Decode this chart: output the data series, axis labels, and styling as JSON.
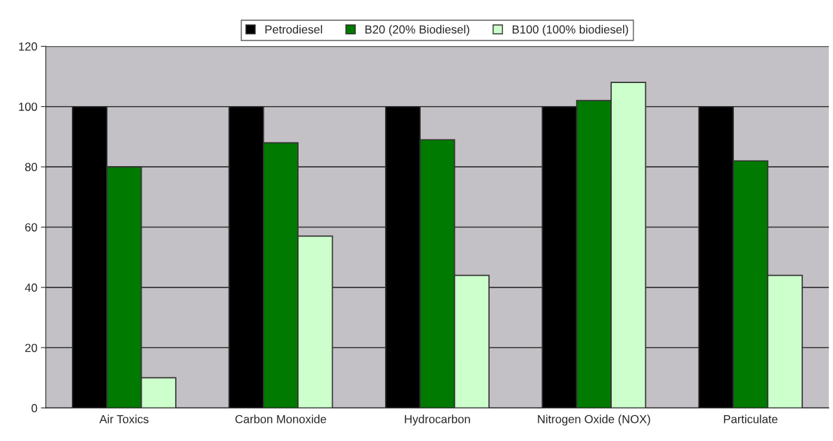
{
  "chart_data": {
    "type": "bar",
    "categories": [
      "Air Toxics",
      "Carbon Monoxide",
      "Hydrocarbon",
      "Nitrogen Oxide (NOX)",
      "Particulate"
    ],
    "series": [
      {
        "name": "Petrodiesel",
        "color": "#000000",
        "values": [
          100,
          100,
          100,
          100,
          100
        ]
      },
      {
        "name": "B20 (20% Biodiesel)",
        "color": "#007a00",
        "values": [
          80,
          88,
          89,
          102,
          82
        ]
      },
      {
        "name": "B100 (100% biodiesel)",
        "color": "#ccffcc",
        "values": [
          10,
          57,
          44,
          108,
          44
        ]
      }
    ],
    "ylim": [
      0,
      120
    ],
    "yticks": [
      0,
      20,
      40,
      60,
      80,
      100,
      120
    ],
    "grid": "y",
    "legend": "top"
  }
}
